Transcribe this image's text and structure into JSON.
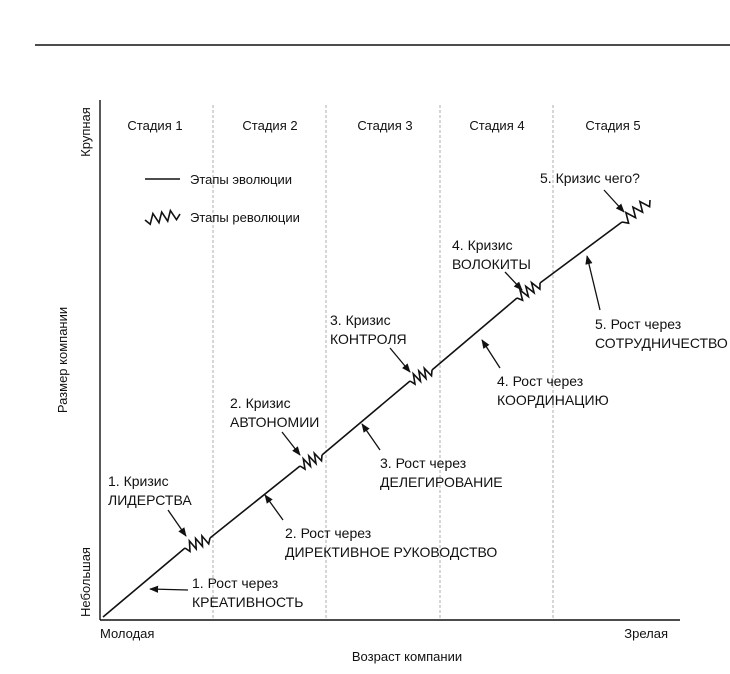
{
  "stages": [
    "Стадия 1",
    "Стадия 2",
    "Стадия 3",
    "Стадия 4",
    "Стадия 5"
  ],
  "y_axis": {
    "title": "Размер компании",
    "top": "Крупная",
    "bottom": "Небольшая"
  },
  "x_axis": {
    "title": "Возраст компании",
    "left": "Молодая",
    "right": "Зрелая"
  },
  "legend": {
    "evolution": "Этапы эволюции",
    "revolution": "Этапы революции"
  },
  "labels": {
    "crisis1": [
      "1. Кризис",
      "ЛИДЕРСТВА"
    ],
    "growth1": [
      "1. Рост через",
      "КРЕАТИВНОСТЬ"
    ],
    "crisis2": [
      "2. Кризис",
      "АВТОНОМИИ"
    ],
    "growth2": [
      "2. Рост через",
      "ДИРЕКТИВНОЕ РУКОВОДСТВО"
    ],
    "crisis3": [
      "3. Кризис",
      "КОНТРОЛЯ"
    ],
    "growth3": [
      "3. Рост через",
      "ДЕЛЕГИРОВАНИЕ"
    ],
    "crisis4": [
      "4. Кризис",
      "ВОЛОКИТЫ"
    ],
    "growth4": [
      "4. Рост через",
      "КООРДИНАЦИЮ"
    ],
    "crisis5": [
      "5. Кризис чего?"
    ],
    "growth5": [
      "5. Рост через",
      "СОТРУДНИЧЕСТВО"
    ]
  }
}
